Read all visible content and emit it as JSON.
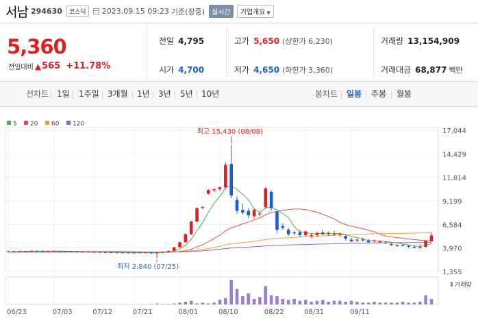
{
  "header": {
    "name": "서남",
    "code": "294630",
    "market": "코스닥",
    "datetime": "2023.09.15 09:23",
    "basis": "기준(장중)",
    "realtime": "실시간",
    "company_dropdown": "기업개요"
  },
  "price": {
    "current": "5,360",
    "change_label": "전일대비",
    "change_value": "565",
    "change_percent": "+11.78%",
    "color_up": "#e02020",
    "color_down": "#1a5fd0"
  },
  "summary": {
    "prev_close": {
      "label": "전일",
      "value": "4,795"
    },
    "high": {
      "label": "고가",
      "value": "5,650",
      "limit": "(상한가 6,230)"
    },
    "volume": {
      "label": "거래량",
      "value": "13,154,909"
    },
    "open": {
      "label": "시가",
      "value": "4,700"
    },
    "low": {
      "label": "저가",
      "value": "4,650",
      "limit": "(하한가 3,360)"
    },
    "amount": {
      "label": "거래대금",
      "value": "68,877",
      "unit": "백만"
    }
  },
  "period_bar": {
    "line_chart_label": "선차트",
    "line_periods": [
      "1일",
      "1주일",
      "3개월",
      "1년",
      "3년",
      "5년",
      "10년"
    ],
    "candle_chart_label": "봉차트",
    "candle_periods": [
      "일봉",
      "주봉",
      "월봉"
    ],
    "active_candle": "일봉"
  },
  "chart_data": {
    "type": "candlestick",
    "legend": [
      {
        "name": "5",
        "color": "#4caf50"
      },
      {
        "name": "20",
        "color": "#e05050"
      },
      {
        "name": "60",
        "color": "#f0a030"
      },
      {
        "name": "120",
        "color": "#9c5cc8"
      }
    ],
    "y_ticks": [
      "17,044",
      "14,429",
      "11,814",
      "9,199",
      "6,584",
      "3,970",
      "1,355"
    ],
    "x_ticks": [
      "06/23",
      "07/03",
      "07/12",
      "07/21",
      "08/01",
      "08/10",
      "08/22",
      "08/31",
      "09/11"
    ],
    "ylim": [
      1355,
      17044
    ],
    "annotations": {
      "high": "최고 15,430 (08/08)",
      "low": "최저 2,840 (07/25)"
    },
    "volume_label": "거래량",
    "candles": [
      [
        3600,
        3650,
        3580,
        3620
      ],
      [
        3620,
        3660,
        3590,
        3600
      ],
      [
        3600,
        3640,
        3570,
        3630
      ],
      [
        3630,
        3660,
        3600,
        3610
      ],
      [
        3610,
        3650,
        3590,
        3640
      ],
      [
        3640,
        3670,
        3610,
        3620
      ],
      [
        3620,
        3650,
        3580,
        3600
      ],
      [
        3600,
        3630,
        3560,
        3610
      ],
      [
        3610,
        3650,
        3590,
        3630
      ],
      [
        3630,
        3660,
        3600,
        3620
      ],
      [
        3620,
        3640,
        3570,
        3590
      ],
      [
        3590,
        3620,
        3550,
        3580
      ],
      [
        3580,
        3610,
        3540,
        3560
      ],
      [
        3560,
        3590,
        3510,
        3540
      ],
      [
        3540,
        3570,
        3500,
        3520
      ],
      [
        3520,
        3550,
        3480,
        3510
      ],
      [
        3510,
        3540,
        3460,
        3490
      ],
      [
        3490,
        3530,
        3450,
        3480
      ],
      [
        3480,
        3510,
        3440,
        3470
      ],
      [
        3470,
        3500,
        3430,
        3460
      ],
      [
        3460,
        3490,
        3420,
        3440
      ],
      [
        3440,
        3480,
        3400,
        3450
      ],
      [
        3450,
        3480,
        3410,
        3430
      ],
      [
        3430,
        3470,
        3390,
        3460
      ],
      [
        3460,
        3500,
        3420,
        3480
      ],
      [
        3480,
        3520,
        3300,
        3380
      ],
      [
        3380,
        3480,
        2840,
        3450
      ],
      [
        3450,
        3600,
        3400,
        3550
      ],
      [
        3550,
        3700,
        3500,
        3650
      ],
      [
        3650,
        4100,
        3600,
        4050
      ],
      [
        4050,
        4700,
        4000,
        4600
      ],
      [
        4600,
        5600,
        4550,
        5500
      ],
      [
        5500,
        7000,
        5400,
        6900
      ],
      [
        6900,
        8500,
        6800,
        8400
      ],
      [
        8400,
        8600,
        8300,
        8500
      ],
      [
        10000,
        10500,
        9900,
        10400
      ],
      [
        10400,
        10600,
        10200,
        10500
      ],
      [
        10500,
        10800,
        10300,
        10700
      ],
      [
        10700,
        13500,
        10500,
        13200
      ],
      [
        13300,
        15430,
        9500,
        9800
      ],
      [
        9300,
        9700,
        7800,
        8100
      ],
      [
        8200,
        8900,
        7700,
        7900
      ],
      [
        8100,
        8400,
        7300,
        7600
      ],
      [
        7500,
        8400,
        7200,
        8200
      ],
      [
        7700,
        8000,
        7500,
        7800
      ],
      [
        8500,
        10700,
        8300,
        10600
      ],
      [
        10200,
        10400,
        8100,
        8400
      ],
      [
        8000,
        8100,
        5600,
        6000
      ],
      [
        6400,
        6700,
        6000,
        6200
      ],
      [
        6000,
        6200,
        5300,
        5500
      ],
      [
        5600,
        5900,
        5400,
        5700
      ],
      [
        5700,
        6000,
        5200,
        5400
      ],
      [
        5400,
        5900,
        5300,
        5800
      ],
      [
        5300,
        5600,
        5100,
        5400
      ],
      [
        5400,
        5800,
        5200,
        5600
      ],
      [
        5500,
        6000,
        5400,
        5700
      ],
      [
        5500,
        5800,
        5300,
        5600
      ],
      [
        5500,
        5900,
        5300,
        5500
      ],
      [
        5400,
        5700,
        5200,
        5500
      ],
      [
        5300,
        5500,
        4800,
        5000
      ],
      [
        4900,
        5100,
        4600,
        4700
      ],
      [
        4800,
        5000,
        4600,
        4900
      ],
      [
        4900,
        5100,
        4700,
        4800
      ],
      [
        4800,
        5000,
        4500,
        4600
      ],
      [
        4700,
        4900,
        4600,
        4800
      ],
      [
        4600,
        4800,
        4500,
        4700
      ],
      [
        4500,
        4700,
        4400,
        4600
      ],
      [
        4400,
        4500,
        4200,
        4300
      ],
      [
        4200,
        4400,
        4100,
        4300
      ],
      [
        4300,
        4400,
        4100,
        4200
      ],
      [
        4200,
        4300,
        4000,
        4100
      ],
      [
        4100,
        4300,
        3900,
        4000
      ],
      [
        4000,
        4400,
        3900,
        4100
      ],
      [
        4100,
        4700,
        4000,
        4800
      ],
      [
        4700,
        5650,
        4650,
        5360
      ]
    ],
    "volume": [
      0,
      0,
      0,
      0,
      0,
      0,
      0,
      0,
      0,
      0,
      0,
      0,
      0,
      0,
      0,
      0,
      0,
      0,
      0,
      0,
      0,
      0,
      0,
      0,
      0,
      0.5,
      1,
      0.5,
      0.5,
      1,
      2,
      3,
      4,
      1,
      2,
      1,
      2,
      5,
      7,
      27,
      17,
      9,
      12,
      6,
      8,
      20,
      10,
      9,
      6,
      5,
      6,
      4,
      5,
      3,
      4,
      5,
      3,
      4,
      4,
      3,
      4,
      3,
      2,
      2,
      3,
      2,
      2,
      2,
      2,
      3,
      2,
      2,
      3,
      10,
      6
    ]
  }
}
